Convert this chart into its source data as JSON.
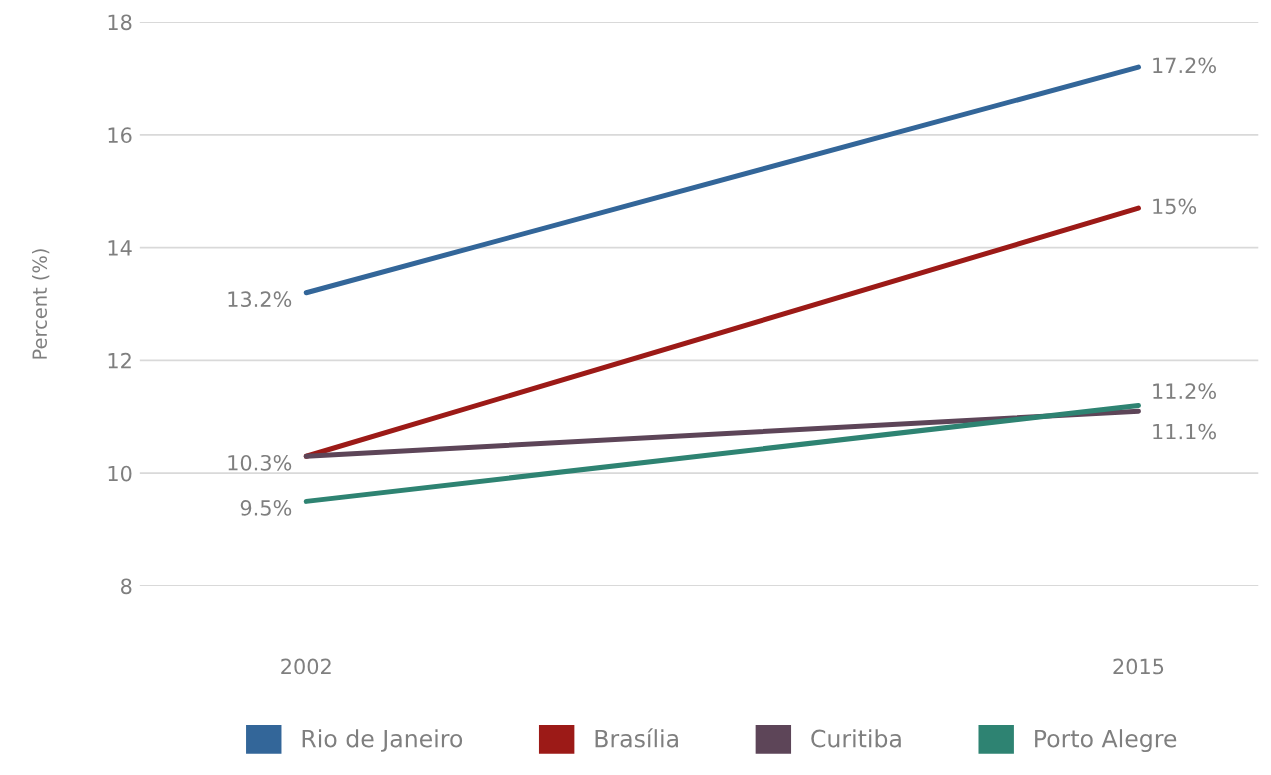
{
  "chart_data": {
    "type": "line",
    "ylabel": "Percent (%)",
    "categories": [
      "2002",
      "2015"
    ],
    "series": [
      {
        "name": "Rio de Janeiro",
        "color": "#336699",
        "values": [
          13.2,
          17.2
        ],
        "value_labels": [
          "13.2%",
          "17.2%"
        ]
      },
      {
        "name": "Brasília",
        "color": "#9c1a17",
        "values": [
          10.3,
          14.7
        ],
        "value_labels": [
          "10.3%",
          "15%"
        ]
      },
      {
        "name": "Curitiba",
        "color": "#5d4558",
        "values": [
          10.3,
          11.1
        ],
        "value_labels": [
          null,
          "11.1%"
        ]
      },
      {
        "name": "Porto Alegre",
        "color": "#2e8372",
        "values": [
          9.5,
          11.2
        ],
        "value_labels": [
          "9.5%",
          "11.2%"
        ]
      }
    ],
    "ylim": [
      8,
      18
    ],
    "yticks": [
      8,
      10,
      12,
      14,
      16,
      18
    ],
    "grid": "y",
    "legend": "bottom",
    "line_style": "solid"
  }
}
